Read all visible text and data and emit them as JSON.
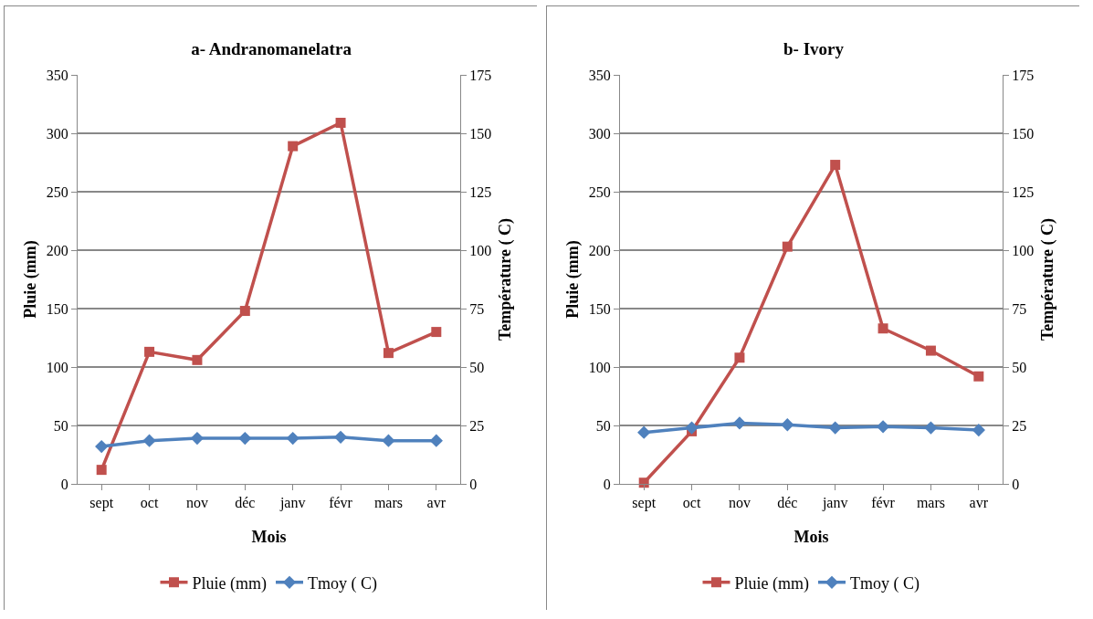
{
  "chart_data": [
    {
      "type": "line",
      "title": "a- Andranomanelatra",
      "xlabel": "Mois",
      "ylabel": "Pluie (mm)",
      "y2label": "Température ( C)",
      "categories": [
        "sept",
        "oct",
        "nov",
        "déc",
        "janv",
        "févr",
        "mars",
        "avr"
      ],
      "series": [
        {
          "name": "Pluie (mm)",
          "color": "#c0504d",
          "marker": "square",
          "values": [
            12,
            113,
            106,
            148,
            289,
            309,
            112,
            130
          ]
        },
        {
          "name": "Tmoy ( C)",
          "color": "#4f81bd",
          "marker": "diamond",
          "axis": "y2",
          "values": [
            16,
            18.5,
            19.5,
            19.5,
            19.5,
            20,
            18.5,
            18.5
          ]
        }
      ],
      "ylim": [
        0,
        350
      ],
      "yticks": [
        0,
        50,
        100,
        150,
        200,
        250,
        300,
        350
      ],
      "y2lim": [
        0,
        175
      ],
      "y2ticks": [
        0,
        25,
        50,
        75,
        100,
        125,
        150,
        175
      ],
      "grid": "y",
      "legend": "bottom",
      "line_style": "solid"
    },
    {
      "type": "line",
      "title": "b- Ivory",
      "xlabel": "Mois",
      "ylabel": "Pluie (mm)",
      "y2label": "Température ( C)",
      "categories": [
        "sept",
        "oct",
        "nov",
        "déc",
        "janv",
        "févr",
        "mars",
        "avr"
      ],
      "series": [
        {
          "name": "Pluie (mm)",
          "color": "#c0504d",
          "marker": "square",
          "values": [
            1,
            45,
            108,
            203,
            273,
            133,
            114,
            92
          ]
        },
        {
          "name": "Tmoy ( C)",
          "color": "#4f81bd",
          "marker": "diamond",
          "axis": "y2",
          "values": [
            22,
            24,
            26,
            25.3,
            24,
            24.5,
            24,
            23
          ]
        }
      ],
      "ylim": [
        0,
        350
      ],
      "yticks": [
        0,
        50,
        100,
        150,
        200,
        250,
        300,
        350
      ],
      "y2lim": [
        0,
        175
      ],
      "y2ticks": [
        0,
        25,
        50,
        75,
        100,
        125,
        150,
        175
      ],
      "grid": "y",
      "legend": "bottom",
      "line_style": "solid"
    }
  ]
}
